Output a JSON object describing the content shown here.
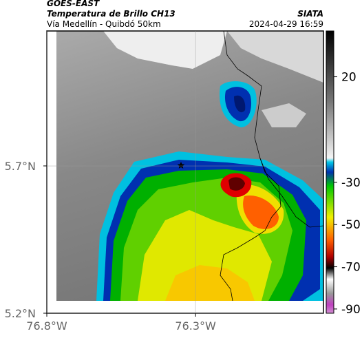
{
  "header": {
    "title": "GOES-EAST",
    "subtitle": "Temperatura de Brillo CH13",
    "region": "Vía Medellín - Quibdó 50km",
    "source": "SIATA",
    "timestamp": "2024-04-29 16:59"
  },
  "map": {
    "xlim": [
      -76.8,
      -75.87
    ],
    "ylim": [
      5.2,
      6.158
    ],
    "xticks": [
      {
        "value": -76.8,
        "label": "76.8°W"
      },
      {
        "value": -76.3,
        "label": "76.3°W"
      }
    ],
    "yticks": [
      {
        "value": 5.7,
        "label": "5.7°N"
      },
      {
        "value": 5.2,
        "label": "5.2°N"
      }
    ]
  },
  "colorbar": {
    "clim": [
      -92,
      41.7
    ],
    "ticks": [
      20,
      -30,
      -50,
      -70,
      -90
    ]
  }
}
